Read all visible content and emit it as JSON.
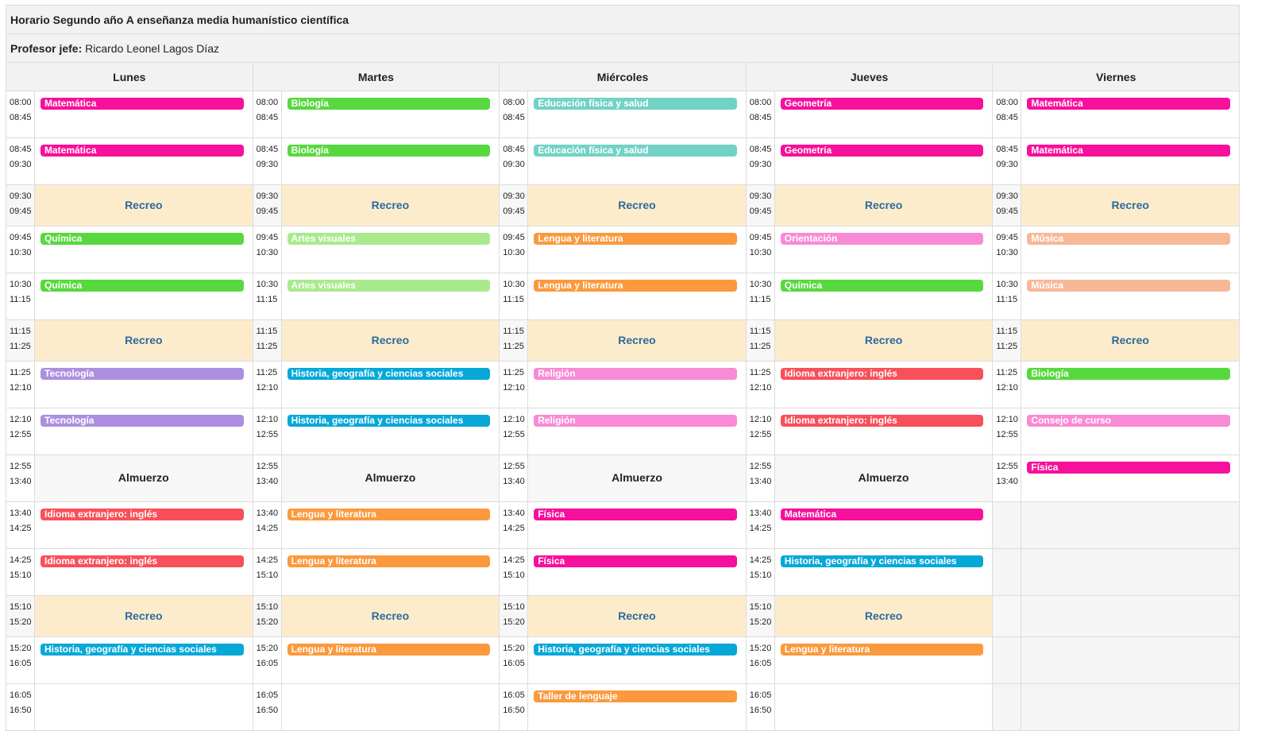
{
  "header": {
    "title": "Horario Segundo año A enseñanza media humanístico científica",
    "profesor_label": "Profesor jefe:",
    "profesor_name": "Ricardo Leonel Lagos Díaz"
  },
  "days": [
    "Lunes",
    "Martes",
    "Miércoles",
    "Jueves",
    "Viernes"
  ],
  "colors": {
    "mat": "#f6109b",
    "bio": "#57d83f",
    "edf": "#72d2c6",
    "geo": "#f6109b",
    "qui": "#57d83f",
    "art": "#a9ea8d",
    "len": "#fb993d",
    "ori": "#f98ad5",
    "mus": "#f7b898",
    "tec": "#ad8fdf",
    "his": "#07a8d8",
    "rel": "#f98ad5",
    "ing": "#f8505a",
    "cons": "#f98ad5",
    "fis": "#f6109b",
    "tal": "#fb993d",
    "recreo_bg": "#fdeccb",
    "recreo_text": "#2b6aa0"
  },
  "labels": {
    "recreo": "Recreo",
    "almuerzo": "Almuerzo"
  },
  "rows": [
    {
      "type": "class",
      "start": "08:00",
      "end": "08:45",
      "cells": [
        [
          "Matemática",
          "mat"
        ],
        [
          "Biología",
          "bio"
        ],
        [
          "Educación física y salud",
          "edf"
        ],
        [
          "Geometría",
          "geo"
        ],
        [
          "Matemática",
          "mat"
        ]
      ]
    },
    {
      "type": "class",
      "start": "08:45",
      "end": "09:30",
      "cells": [
        [
          "Matemática",
          "mat"
        ],
        [
          "Biología",
          "bio"
        ],
        [
          "Educación física y salud",
          "edf"
        ],
        [
          "Geometría",
          "geo"
        ],
        [
          "Matemática",
          "mat"
        ]
      ]
    },
    {
      "type": "break",
      "start": "09:30",
      "end": "09:45"
    },
    {
      "type": "class",
      "start": "09:45",
      "end": "10:30",
      "cells": [
        [
          "Química",
          "qui"
        ],
        [
          "Artes visuales",
          "art"
        ],
        [
          "Lengua y literatura",
          "len"
        ],
        [
          "Orientación",
          "ori"
        ],
        [
          "Música",
          "mus"
        ]
      ]
    },
    {
      "type": "class",
      "start": "10:30",
      "end": "11:15",
      "cells": [
        [
          "Química",
          "qui"
        ],
        [
          "Artes visuales",
          "art"
        ],
        [
          "Lengua y literatura",
          "len"
        ],
        [
          "Química",
          "qui"
        ],
        [
          "Música",
          "mus"
        ]
      ]
    },
    {
      "type": "break",
      "start": "11:15",
      "end": "11:25"
    },
    {
      "type": "class",
      "start": "11:25",
      "end": "12:10",
      "cells": [
        [
          "Tecnología",
          "tec"
        ],
        [
          "Historia, geografía y ciencias sociales",
          "his"
        ],
        [
          "Religión",
          "rel"
        ],
        [
          "Idioma extranjero: inglés",
          "ing"
        ],
        [
          "Biología",
          "bio"
        ]
      ]
    },
    {
      "type": "class",
      "start": "12:10",
      "end": "12:55",
      "cells": [
        [
          "Tecnología",
          "tec"
        ],
        [
          "Historia, geografía y ciencias sociales",
          "his"
        ],
        [
          "Religión",
          "rel"
        ],
        [
          "Idioma extranjero: inglés",
          "ing"
        ],
        [
          "Consejo de curso",
          "cons"
        ]
      ]
    },
    {
      "type": "lunch",
      "start": "12:55",
      "end": "13:40",
      "cells": [
        null,
        null,
        null,
        null,
        [
          "Física",
          "fis"
        ]
      ]
    },
    {
      "type": "class",
      "start": "13:40",
      "end": "14:25",
      "cells": [
        [
          "Idioma extranjero: inglés",
          "ing"
        ],
        [
          "Lengua y literatura",
          "len"
        ],
        [
          "Física",
          "fis"
        ],
        [
          "Matemática",
          "mat"
        ],
        "empty"
      ]
    },
    {
      "type": "class",
      "start": "14:25",
      "end": "15:10",
      "cells": [
        [
          "Idioma extranjero: inglés",
          "ing"
        ],
        [
          "Lengua y literatura",
          "len"
        ],
        [
          "Física",
          "fis"
        ],
        [
          "Historia, geografía y ciencias sociales",
          "his"
        ],
        "empty"
      ]
    },
    {
      "type": "break",
      "start": "15:10",
      "end": "15:20",
      "skip_friday": true
    },
    {
      "type": "class",
      "start": "15:20",
      "end": "16:05",
      "cells": [
        [
          "Historia, geografía y ciencias sociales",
          "his"
        ],
        [
          "Lengua y literatura",
          "len"
        ],
        [
          "Historia, geografía y ciencias sociales",
          "his"
        ],
        [
          "Lengua y literatura",
          "len"
        ],
        "empty"
      ]
    },
    {
      "type": "class",
      "start": "16:05",
      "end": "16:50",
      "cells": [
        "blank",
        "blank",
        [
          "Taller de lenguaje",
          "tal"
        ],
        "blank",
        "empty"
      ]
    }
  ]
}
